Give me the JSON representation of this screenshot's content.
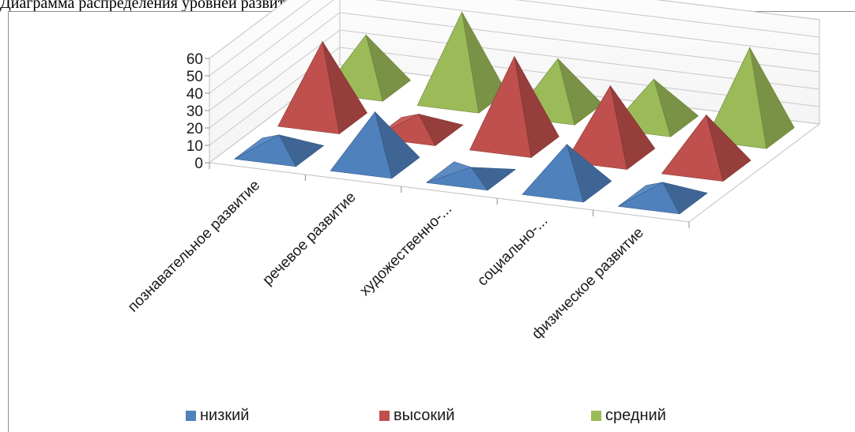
{
  "header": {
    "text": "Диаграмма распределения уровней развития по образовательным областям у детей"
  },
  "chart_data": {
    "type": "bar",
    "subtype": "3d-pyramid",
    "categories": [
      "познавательное развитие",
      "речевое развитие",
      "художественно-...",
      "социально-...",
      "физическое развитие"
    ],
    "series": [
      {
        "name": "низкий",
        "color": "#4f81bd",
        "values": [
          10,
          30,
          5,
          25,
          10
        ]
      },
      {
        "name": "высокий",
        "color": "#c0504d",
        "values": [
          45,
          10,
          50,
          40,
          30
        ]
      },
      {
        "name": "средний",
        "color": "#9bbb59",
        "values": [
          30,
          50,
          30,
          25,
          50
        ]
      }
    ],
    "y_ticks": [
      "0",
      "10",
      "20",
      "30",
      "40",
      "50",
      "60"
    ],
    "ylim": [
      0,
      60
    ],
    "grid": true,
    "legend_position": "bottom"
  }
}
